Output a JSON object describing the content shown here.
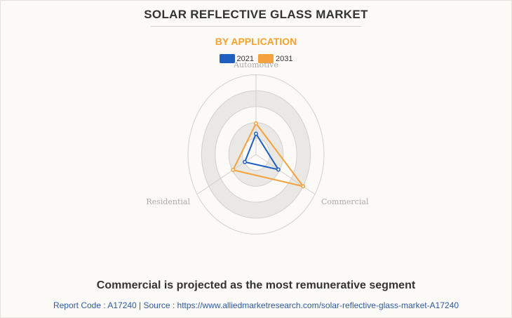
{
  "header": {
    "title": "SOLAR REFLECTIVE GLASS MARKET",
    "subtitle": "BY APPLICATION"
  },
  "footer": {
    "headline": "Commercial is projected as the most remunerative segment",
    "source": "Report Code : A17240  |  Source : https://www.alliedmarketresearch.com/solar-reflective-glass-market-A17240"
  },
  "colors": {
    "series_2021": "#1f5fbf",
    "series_2031": "#f4a23c",
    "ring_band": "#e9e8e4",
    "grid_line": "#d2d0cb",
    "axis_label": "#aaaaaa"
  },
  "chart_data": {
    "type": "radar",
    "categories": [
      "Automotive",
      "Commercial",
      "Residential"
    ],
    "series": [
      {
        "name": "2021",
        "values": [
          0.26,
          0.38,
          0.19
        ]
      },
      {
        "name": "2031",
        "values": [
          0.39,
          0.8,
          0.39
        ]
      }
    ],
    "rlim": [
      0,
      1
    ],
    "grid": true,
    "legend_position": "top-center"
  }
}
